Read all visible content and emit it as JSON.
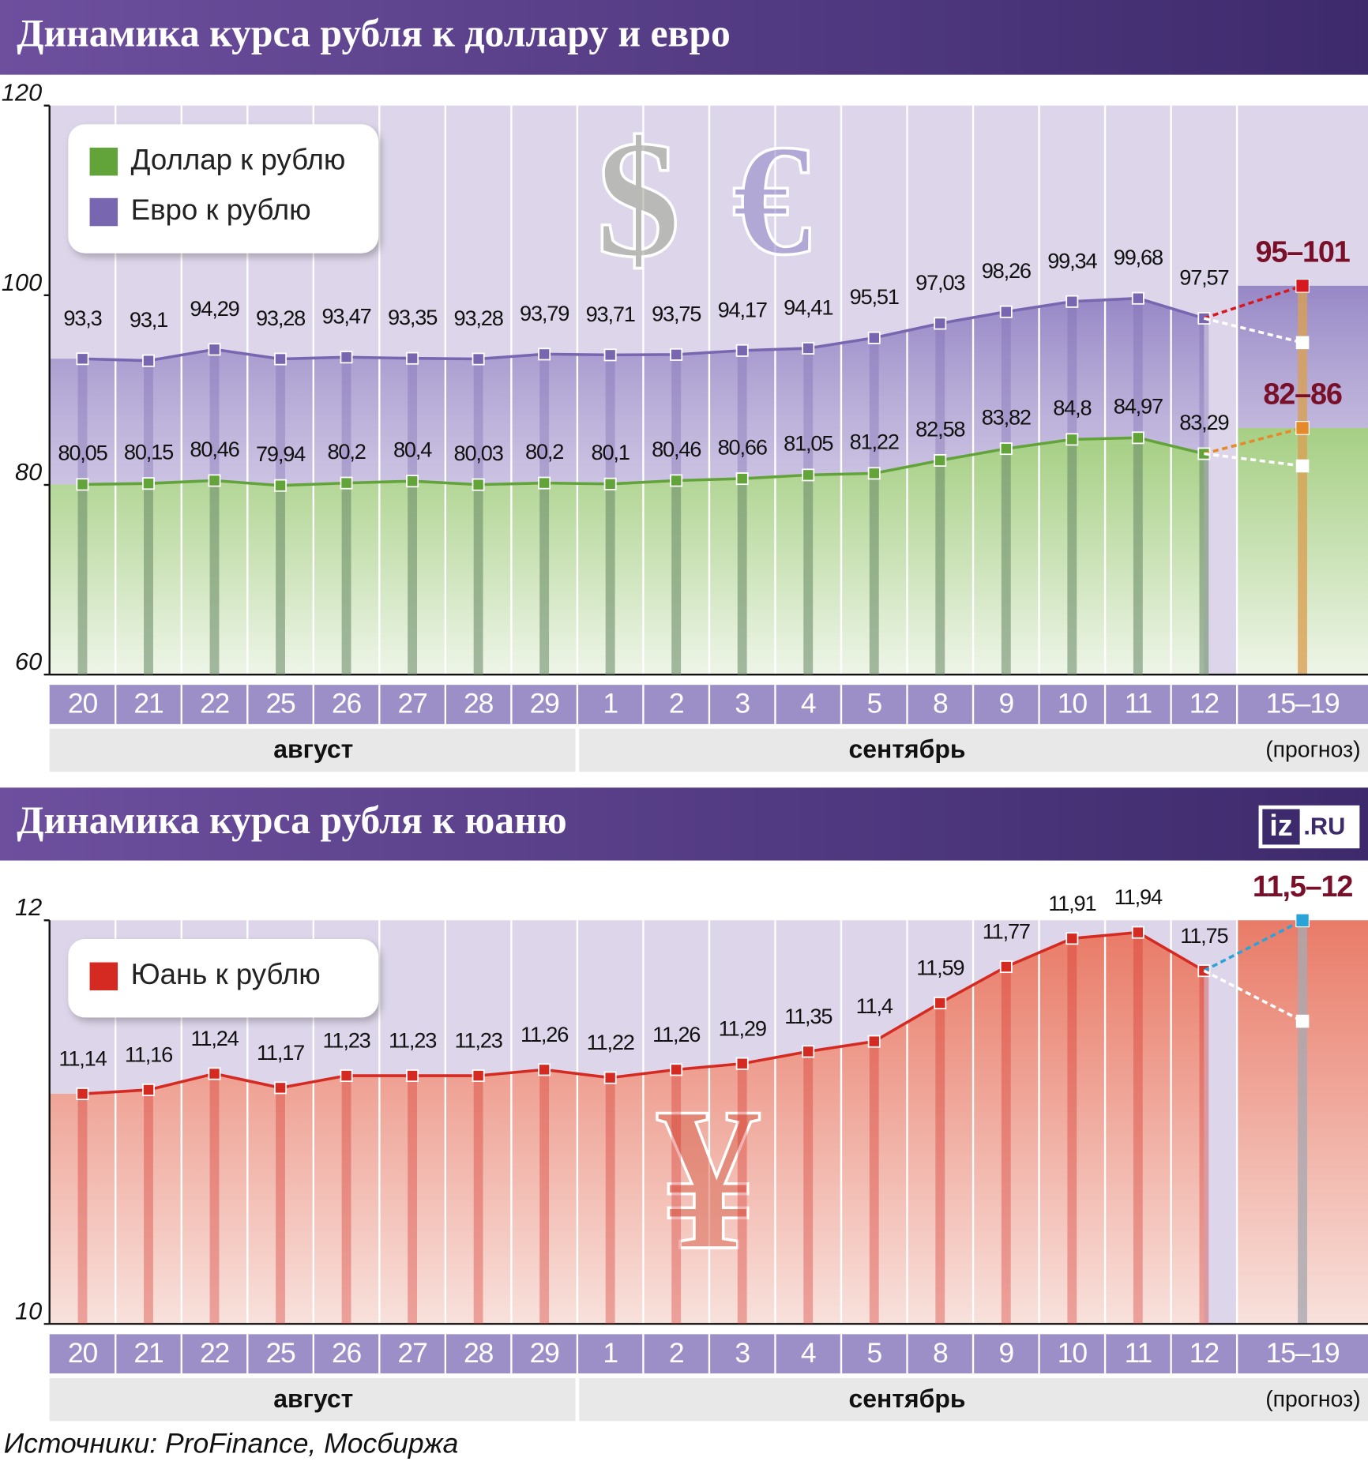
{
  "chart_data": [
    {
      "type": "line",
      "title": "Динамика курса рубля к доллару и евро",
      "categories": [
        "20",
        "21",
        "22",
        "25",
        "26",
        "27",
        "28",
        "29",
        "1",
        "2",
        "3",
        "4",
        "5",
        "8",
        "9",
        "10",
        "11",
        "12",
        "15–19"
      ],
      "month_labels": [
        "август",
        "сентябрь"
      ],
      "forecast_note": "(прогноз)",
      "symbols": [
        "$",
        "€"
      ],
      "ylim": [
        60,
        120
      ],
      "yticks": [
        60,
        80,
        100,
        120
      ],
      "series": [
        {
          "name": "Евро к рублю",
          "color": "#7866b0",
          "values": [
            93.3,
            93.1,
            94.29,
            93.28,
            93.47,
            93.35,
            93.28,
            93.79,
            93.71,
            93.75,
            94.17,
            94.41,
            95.51,
            97.03,
            98.26,
            99.34,
            99.68,
            97.57,
            null
          ],
          "value_labels": [
            "93,3",
            "93,1",
            "94,29",
            "93,28",
            "93,47",
            "93,35",
            "93,28",
            "93,79",
            "93,71",
            "93,75",
            "94,17",
            "94,41",
            "95,51",
            "97,03",
            "98,26",
            "99,34",
            "99,68",
            "97,57",
            null
          ],
          "forecast": {
            "label": "95–101",
            "low": 95,
            "high": 101,
            "color": "#d7191f",
            "label_color": "#7a0f2a"
          }
        },
        {
          "name": "Доллар к рублю",
          "color": "#62a33a",
          "values": [
            80.05,
            80.15,
            80.46,
            79.94,
            80.2,
            80.4,
            80.03,
            80.2,
            80.1,
            80.46,
            80.66,
            81.05,
            81.22,
            82.58,
            83.82,
            84.8,
            84.97,
            83.29,
            null
          ],
          "value_labels": [
            "80,05",
            "80,15",
            "80,46",
            "79,94",
            "80,2",
            "80,4",
            "80,03",
            "80,2",
            "80,1",
            "80,46",
            "80,66",
            "81,05",
            "81,22",
            "82,58",
            "83,82",
            "84,8",
            "84,97",
            "83,29",
            null
          ],
          "forecast": {
            "label": "82–86",
            "low": 82,
            "high": 86,
            "color": "#e6892a",
            "label_color": "#7a0f2a"
          }
        }
      ]
    },
    {
      "type": "line",
      "title": "Динамика курса рубля к юаню",
      "logo": [
        "iz",
        ".RU"
      ],
      "categories": [
        "20",
        "21",
        "22",
        "25",
        "26",
        "27",
        "28",
        "29",
        "1",
        "2",
        "3",
        "4",
        "5",
        "8",
        "9",
        "10",
        "11",
        "12",
        "15–19"
      ],
      "month_labels": [
        "август",
        "сентябрь"
      ],
      "forecast_note": "(прогноз)",
      "symbols": [
        "¥"
      ],
      "ylim": [
        10,
        12
      ],
      "yticks": [
        10,
        12
      ],
      "series": [
        {
          "name": "Юань к рублю",
          "color": "#d42a22",
          "values": [
            11.14,
            11.16,
            11.24,
            11.17,
            11.23,
            11.23,
            11.23,
            11.26,
            11.22,
            11.26,
            11.29,
            11.35,
            11.4,
            11.59,
            11.77,
            11.91,
            11.94,
            11.75,
            null
          ],
          "value_labels": [
            "11,14",
            "11,16",
            "11,24",
            "11,17",
            "11,23",
            "11,23",
            "11,23",
            "11,26",
            "11,22",
            "11,26",
            "11,29",
            "11,35",
            "11,4",
            "11,59",
            "11,77",
            "11,91",
            "11,94",
            "11,75",
            null
          ],
          "forecast": {
            "label": "11,5–12",
            "low": 11.5,
            "high": 12,
            "color": "#2aa3d8",
            "label_color": "#7a0f2a"
          }
        }
      ]
    }
  ],
  "source": "Источники: ProFinance, Мосбиржа"
}
